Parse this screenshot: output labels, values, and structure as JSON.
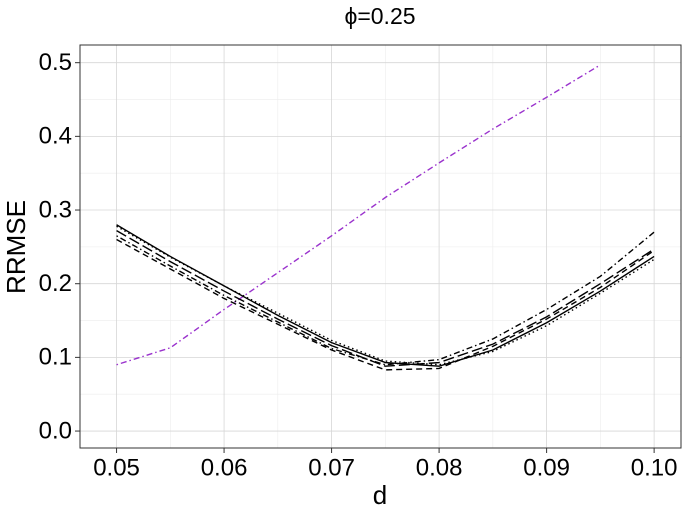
{
  "chart_data": {
    "type": "line",
    "title": "ϕ=0.25",
    "xlabel": "d",
    "ylabel": "RRMSE",
    "x": [
      0.05,
      0.055,
      0.06,
      0.065,
      0.07,
      0.075,
      0.08,
      0.085,
      0.09,
      0.095,
      0.1
    ],
    "series": [
      {
        "color": "#9a32cd",
        "linetype": "dotdash",
        "values": [
          0.09,
          0.113,
          0.165,
          0.215,
          0.265,
          0.317,
          0.364,
          0.41,
          0.453,
          0.497,
          null
        ]
      },
      {
        "color": "#000000",
        "linetype": "solid",
        "values": [
          0.28,
          0.237,
          0.197,
          0.157,
          0.12,
          0.093,
          0.088,
          0.11,
          0.147,
          0.19,
          0.237
        ]
      },
      {
        "color": "#000000",
        "linetype": "dotted",
        "values": [
          0.278,
          0.236,
          0.197,
          0.16,
          0.123,
          0.095,
          0.09,
          0.108,
          0.143,
          0.187,
          0.233
        ]
      },
      {
        "color": "#000000",
        "linetype": "dashed",
        "values": [
          0.26,
          0.22,
          0.18,
          0.145,
          0.11,
          0.083,
          0.085,
          0.115,
          0.152,
          0.195,
          0.245
        ]
      },
      {
        "color": "#000000",
        "linetype": "dotdash",
        "values": [
          0.265,
          0.224,
          0.184,
          0.148,
          0.112,
          0.09,
          0.097,
          0.125,
          0.165,
          0.21,
          0.27
        ]
      },
      {
        "color": "#000000",
        "linetype": "longdash",
        "values": [
          0.272,
          0.23,
          0.19,
          0.152,
          0.116,
          0.088,
          0.093,
          0.118,
          0.155,
          0.2,
          0.247
        ]
      }
    ],
    "xlim": [
      0.0466,
      0.1025
    ],
    "xticks": [
      0.05,
      0.06,
      0.07,
      0.08,
      0.09,
      {
        "value": 0.1,
        "label": "0.10"
      }
    ],
    "ylim": [
      -0.023,
      0.524
    ],
    "yticks": [
      {
        "value": 0,
        "label": "0.0"
      },
      0.1,
      0.2,
      0.3,
      0.4,
      0.5
    ],
    "grid": true
  }
}
